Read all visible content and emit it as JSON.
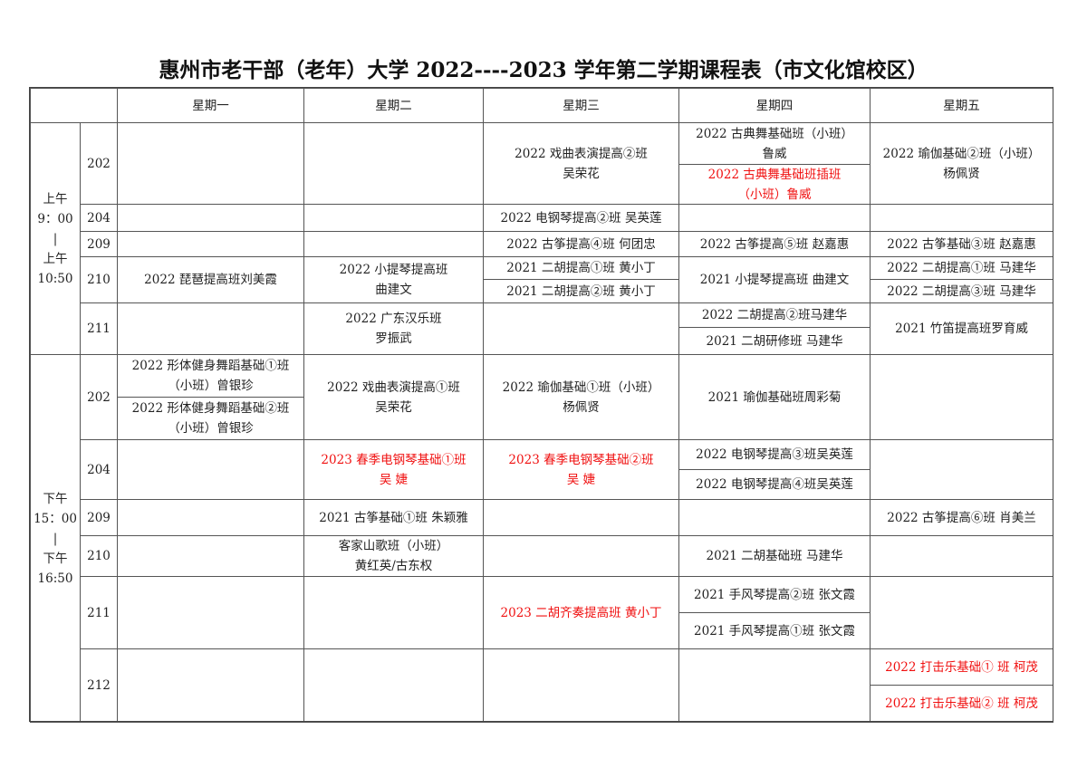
{
  "title": "惠州市老干部（老年）大学 2022----2023 学年第二学期课程表（市文化馆校区）",
  "corner": "",
  "days": [
    "星期一",
    "星期二",
    "星期三",
    "星期四",
    "星期五"
  ],
  "am": {
    "time": "上午\n9：00\n|\n上午\n10:50",
    "rooms": [
      "202",
      "204",
      "209",
      "210",
      "211"
    ],
    "classes": {
      "r202_wed": "2022  戏曲表演提高②班\n吴荣花",
      "r202_thu_1": "2022  古典舞基础班（小班）\n鲁威",
      "r202_thu_2": "2022 古典舞基础班插班\n（小班）鲁威",
      "r202_fri": "2022  瑜伽基础②班（小班）\n杨佩贤",
      "r204_wed": "2022  电钢琴提高②班  吴英莲",
      "r209_wed": "2022  古筝提高④班  何团忠",
      "r209_thu": "2022  古筝提高⑤班  赵嘉惠",
      "r209_fri": "2022  古筝基础③班  赵嘉惠",
      "r210_mon": "2022 琵琶提高班刘美霞",
      "r210_tue": "2022  小提琴提高班\n曲建文",
      "r210_wed_1": "2021  二胡提高①班  黄小丁",
      "r210_wed_2": "2021  二胡提高②班  黄小丁",
      "r210_thu": "2021 小提琴提高班  曲建文",
      "r210_fri_1": "2022  二胡提高①班  马建华",
      "r210_fri_2": "2022  二胡提高③班  马建华",
      "r211_tue": "2022  广东汉乐班\n罗振武",
      "r211_thu_1": "2022 二胡提高②班马建华",
      "r211_thu_2": "2021 二胡研修班  马建华",
      "r211_fri": "2021 竹笛提高班罗育威"
    }
  },
  "pm": {
    "time": "下午\n15：00\n|\n下午\n16:50",
    "rooms": [
      "202",
      "204",
      "209",
      "210",
      "211",
      "212"
    ],
    "classes": {
      "r202_mon_1": "2022  形体健身舞蹈基础①班\n（小班）曾银珍",
      "r202_mon_2": "2022  形体健身舞蹈基础②班\n（小班）曾银珍",
      "r202_tue": "2022  戏曲表演提高①班\n吴荣花",
      "r202_wed": "2022 瑜伽基础①班（小班）\n杨佩贤",
      "r202_thu": "2021 瑜伽基础班周彩菊",
      "r204_tue": "2023  春季电钢琴基础①班\n吴    婕",
      "r204_wed": "2023  春季电钢琴基础②班\n吴    婕",
      "r204_thu_1": "2022 电钢琴提高③班吴英莲",
      "r204_thu_2": "2022 电钢琴提高④班吴英莲",
      "r209_tue": "2021 古筝基础①班  朱颖雅",
      "r209_fri": "2022  古筝提高⑥班  肖美兰",
      "r210_tue": "客家山歌班（小班）\n黄红英/古东权",
      "r210_thu": "2021  二胡基础班  马建华",
      "r211_wed": "2023  二胡齐奏提高班  黄小丁",
      "r211_thu_1": "2021  手风琴提高②班  张文霞",
      "r211_thu_2": "2021  手风琴提高①班  张文霞",
      "r212_fri_1": "2022  打击乐基础① 班  柯茂",
      "r212_fri_2": "2022  打击乐基础② 班  柯茂"
    }
  },
  "colors": {
    "highlight": "#f01010",
    "text": "#222222",
    "border": "#555555"
  }
}
